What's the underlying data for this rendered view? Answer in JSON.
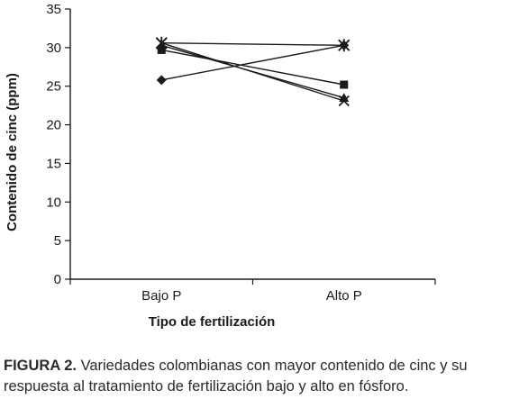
{
  "chart_data": {
    "type": "line",
    "categories": [
      "Bajo P",
      "Alto P"
    ],
    "xlabel": "Tipo de fertilización",
    "ylabel": "Contenido de cinc (ppm)",
    "ylim": [
      0,
      35
    ],
    "yticks": [
      0,
      5,
      10,
      15,
      20,
      25,
      30,
      35
    ],
    "grid": false,
    "legend": "none",
    "series": [
      {
        "marker": "diamond",
        "values": [
          25.8,
          30.3
        ]
      },
      {
        "marker": "square",
        "values": [
          29.7,
          25.2
        ]
      },
      {
        "marker": "triangle",
        "values": [
          30.3,
          23.5
        ]
      },
      {
        "marker": "x",
        "values": [
          30.6,
          23.1
        ]
      },
      {
        "marker": "star",
        "values": [
          30.6,
          30.3
        ]
      }
    ],
    "line_color": "#1a1a1a"
  },
  "caption": {
    "lead": "FIGURA 2.",
    "line1": " Variedades colombianas con mayor contenido de cinc y su",
    "line2": "respuesta al tratamiento de fertilización bajo y alto en fósforo."
  }
}
